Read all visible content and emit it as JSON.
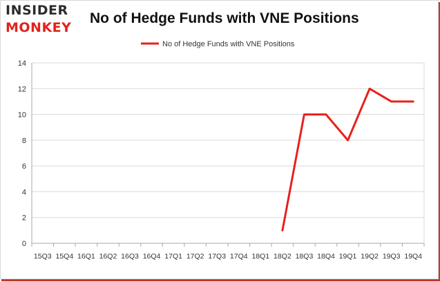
{
  "header": {
    "logo_line1": "INSIDER",
    "logo_line2": "MONKEY",
    "title": "No of Hedge Funds with VNE Positions"
  },
  "colors": {
    "line": "#e8201c",
    "grid": "#d9d9d9",
    "axis": "#aaaaaa"
  },
  "chart_data": {
    "type": "line",
    "title": "No of Hedge Funds with VNE Positions",
    "xlabel": "",
    "ylabel": "",
    "ylim": [
      0,
      14
    ],
    "yticks": [
      0,
      2,
      4,
      6,
      8,
      10,
      12,
      14
    ],
    "grid": true,
    "legend_position": "top-center",
    "categories": [
      "15Q3",
      "15Q4",
      "16Q1",
      "16Q2",
      "16Q3",
      "16Q4",
      "17Q1",
      "17Q2",
      "17Q3",
      "17Q4",
      "18Q1",
      "18Q2",
      "18Q3",
      "18Q4",
      "19Q1",
      "19Q2",
      "19Q3",
      "19Q4"
    ],
    "series": [
      {
        "name": "No of Hedge Funds with VNE Positions",
        "values": [
          null,
          null,
          null,
          null,
          null,
          null,
          null,
          null,
          null,
          null,
          null,
          1,
          10,
          10,
          8,
          12,
          11,
          11
        ]
      }
    ]
  }
}
